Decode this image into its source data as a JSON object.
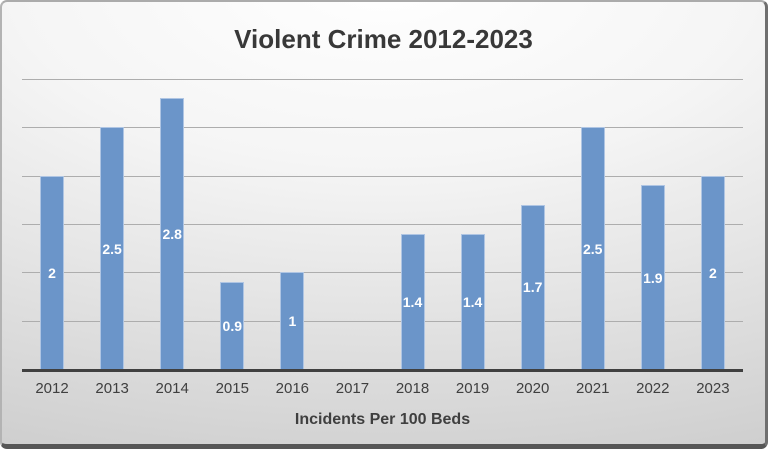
{
  "chart_data": {
    "type": "bar",
    "title": "Violent Crime 2012-2023",
    "xlabel": "Incidents Per 100 Beds",
    "ylabel": "",
    "categories": [
      "2012",
      "2013",
      "2014",
      "2015",
      "2016",
      "2017",
      "2018",
      "2019",
      "2020",
      "2021",
      "2022",
      "2023"
    ],
    "values": [
      2,
      2.5,
      2.8,
      0.9,
      1,
      null,
      1.4,
      1.4,
      1.7,
      2.5,
      1.9,
      2
    ],
    "bar_labels": [
      "2",
      "2.5",
      "2.8",
      "0.9",
      "1",
      "",
      "1.4",
      "1.4",
      "1.7",
      "2.5",
      "1.9",
      "2"
    ],
    "ylim": [
      0,
      3
    ],
    "grid_step": 0.5,
    "grid": true,
    "legend": false,
    "colors": {
      "bar": "#6B95C9",
      "bar_border": "#AFC5E3",
      "bar_value_label": "#FFFFFF",
      "gridline": "#ADADAD",
      "axis_line": "#404040",
      "tick_text": "#3F3F3F",
      "title_text": "#383838"
    }
  }
}
